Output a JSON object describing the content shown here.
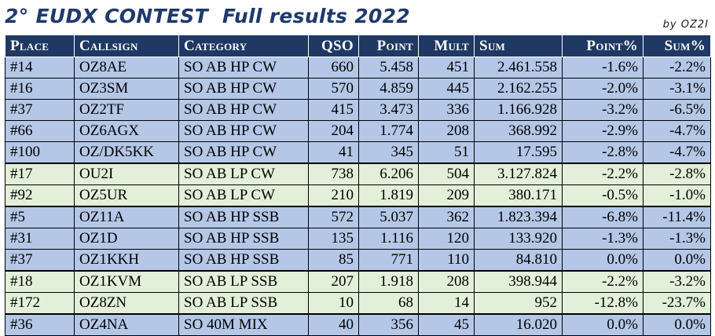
{
  "header": {
    "title": "2° EUDX CONTEST  Full results 2022",
    "byline": "by OZ2I"
  },
  "columns": [
    "Place",
    "Callsign",
    "Category",
    "QSO",
    "Point",
    "Mult",
    "Sum",
    "Point%",
    "Sum%"
  ],
  "rows": [
    {
      "place": "#14",
      "callsign": "OZ8AE",
      "category": "SO AB HP CW",
      "qso": "660",
      "point": "5.458",
      "mult": "451",
      "sum": "2.461.558",
      "point_pct": "-1.6%",
      "sum_pct": "-2.2%",
      "group": "blue"
    },
    {
      "place": "#16",
      "callsign": "OZ3SM",
      "category": "SO AB HP CW",
      "qso": "570",
      "point": "4.859",
      "mult": "445",
      "sum": "2.162.255",
      "point_pct": "-2.0%",
      "sum_pct": "-3.1%",
      "group": "blue"
    },
    {
      "place": "#37",
      "callsign": "OZ2TF",
      "category": "SO AB HP CW",
      "qso": "415",
      "point": "3.473",
      "mult": "336",
      "sum": "1.166.928",
      "point_pct": "-3.2%",
      "sum_pct": "-6.5%",
      "group": "blue"
    },
    {
      "place": "#66",
      "callsign": "OZ6AGX",
      "category": "SO AB HP CW",
      "qso": "204",
      "point": "1.774",
      "mult": "208",
      "sum": "368.992",
      "point_pct": "-2.9%",
      "sum_pct": "-4.7%",
      "group": "blue"
    },
    {
      "place": "#100",
      "callsign": "OZ/DK5KK",
      "category": "SO AB HP CW",
      "qso": "41",
      "point": "345",
      "mult": "51",
      "sum": "17.595",
      "point_pct": "-2.8%",
      "sum_pct": "-4.7%",
      "group": "blue"
    },
    {
      "place": "#17",
      "callsign": "OU2I",
      "category": "SO AB LP CW",
      "qso": "738",
      "point": "6.206",
      "mult": "504",
      "sum": "3.127.824",
      "point_pct": "-2.2%",
      "sum_pct": "-2.8%",
      "group": "green"
    },
    {
      "place": "#92",
      "callsign": "OZ5UR",
      "category": "SO AB LP CW",
      "qso": "210",
      "point": "1.819",
      "mult": "209",
      "sum": "380.171",
      "point_pct": "-0.5%",
      "sum_pct": "-1.0%",
      "group": "green"
    },
    {
      "place": "#5",
      "callsign": "OZ11A",
      "category": "SO AB HP SSB",
      "qso": "572",
      "point": "5.037",
      "mult": "362",
      "sum": "1.823.394",
      "point_pct": "-6.8%",
      "sum_pct": "-11.4%",
      "group": "blue"
    },
    {
      "place": "#31",
      "callsign": "OZ1D",
      "category": "SO AB HP SSB",
      "qso": "135",
      "point": "1.116",
      "mult": "120",
      "sum": "133.920",
      "point_pct": "-1.3%",
      "sum_pct": "-1.3%",
      "group": "blue"
    },
    {
      "place": "#37",
      "callsign": "OZ1KKH",
      "category": "SO AB HP SSB",
      "qso": "85",
      "point": "771",
      "mult": "110",
      "sum": "84.810",
      "point_pct": "0.0%",
      "sum_pct": "0.0%",
      "group": "blue"
    },
    {
      "place": "#18",
      "callsign": "OZ1KVM",
      "category": "SO AB LP SSB",
      "qso": "207",
      "point": "1.918",
      "mult": "208",
      "sum": "398.944",
      "point_pct": "-2.2%",
      "sum_pct": "-3.2%",
      "group": "green"
    },
    {
      "place": "#172",
      "callsign": "OZ8ZN",
      "category": "SO AB LP SSB",
      "qso": "10",
      "point": "68",
      "mult": "14",
      "sum": "952",
      "point_pct": "-12.8%",
      "sum_pct": "-23.7%",
      "group": "green"
    },
    {
      "place": "#36",
      "callsign": "OZ4NA",
      "category": "SO 40M MIX",
      "qso": "40",
      "point": "356",
      "mult": "45",
      "sum": "16.020",
      "point_pct": "0.0%",
      "sum_pct": "0.0%",
      "group": "blue"
    }
  ]
}
